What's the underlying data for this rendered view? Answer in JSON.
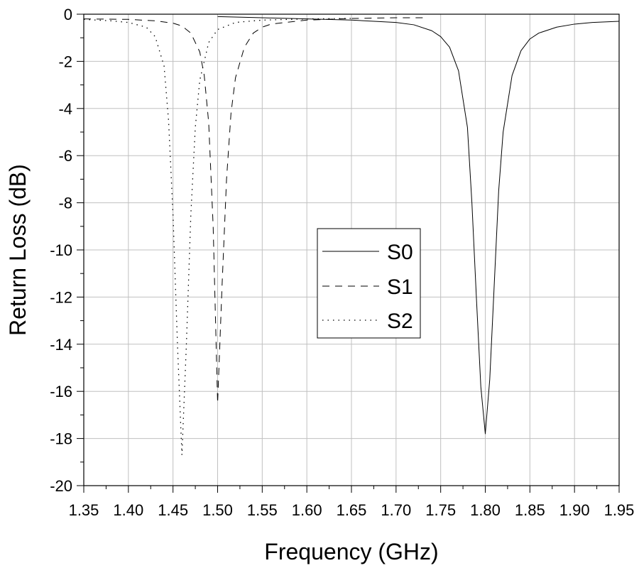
{
  "chart_data": {
    "type": "line",
    "title": "",
    "xlabel": "Frequency (GHz)",
    "ylabel": "Return Loss (dB)",
    "xlim": [
      1.35,
      1.95
    ],
    "ylim": [
      -20,
      0
    ],
    "x_ticks": [
      "1.35",
      "1.40",
      "1.45",
      "1.50",
      "1.55",
      "1.60",
      "1.65",
      "1.70",
      "1.75",
      "1.80",
      "1.85",
      "1.90",
      "1.95"
    ],
    "y_ticks": [
      "0",
      "-2",
      "-4",
      "-6",
      "-8",
      "-10",
      "-12",
      "-14",
      "-16",
      "-18",
      "-20"
    ],
    "grid": true,
    "legend_position": "center",
    "colors": {
      "line": "#000000",
      "grid": "#c0c0c0"
    },
    "series": [
      {
        "name": "S0",
        "style": "solid",
        "x": [
          1.5,
          1.55,
          1.6,
          1.65,
          1.7,
          1.72,
          1.74,
          1.75,
          1.76,
          1.77,
          1.78,
          1.785,
          1.79,
          1.795,
          1.8,
          1.805,
          1.81,
          1.815,
          1.82,
          1.83,
          1.84,
          1.85,
          1.86,
          1.88,
          1.9,
          1.92,
          1.95
        ],
        "y": [
          -0.1,
          -0.15,
          -0.2,
          -0.25,
          -0.35,
          -0.45,
          -0.7,
          -0.95,
          -1.4,
          -2.4,
          -4.8,
          -8.0,
          -12.0,
          -15.8,
          -17.8,
          -15.5,
          -11.5,
          -7.5,
          -5.0,
          -2.6,
          -1.55,
          -1.05,
          -0.8,
          -0.55,
          -0.42,
          -0.35,
          -0.3
        ]
      },
      {
        "name": "S1",
        "style": "dashed",
        "x": [
          1.35,
          1.4,
          1.43,
          1.45,
          1.46,
          1.47,
          1.48,
          1.485,
          1.49,
          1.495,
          1.5,
          1.505,
          1.51,
          1.515,
          1.52,
          1.53,
          1.54,
          1.55,
          1.56,
          1.6,
          1.65,
          1.7,
          1.73
        ],
        "y": [
          -0.2,
          -0.22,
          -0.28,
          -0.38,
          -0.5,
          -0.8,
          -1.6,
          -2.6,
          -4.6,
          -9.0,
          -16.5,
          -11.5,
          -7.0,
          -4.2,
          -2.7,
          -1.4,
          -0.8,
          -0.55,
          -0.42,
          -0.25,
          -0.18,
          -0.15,
          -0.15
        ]
      },
      {
        "name": "S2",
        "style": "dotted",
        "x": [
          1.35,
          1.38,
          1.4,
          1.42,
          1.43,
          1.44,
          1.445,
          1.45,
          1.455,
          1.46,
          1.465,
          1.47,
          1.475,
          1.48,
          1.49,
          1.5,
          1.52,
          1.55,
          1.6,
          1.65
        ],
        "y": [
          -0.22,
          -0.28,
          -0.35,
          -0.55,
          -0.95,
          -2.2,
          -4.5,
          -8.5,
          -14.0,
          -18.7,
          -14.0,
          -8.5,
          -4.8,
          -2.8,
          -1.2,
          -0.65,
          -0.35,
          -0.25,
          -0.2,
          -0.18
        ]
      }
    ]
  }
}
